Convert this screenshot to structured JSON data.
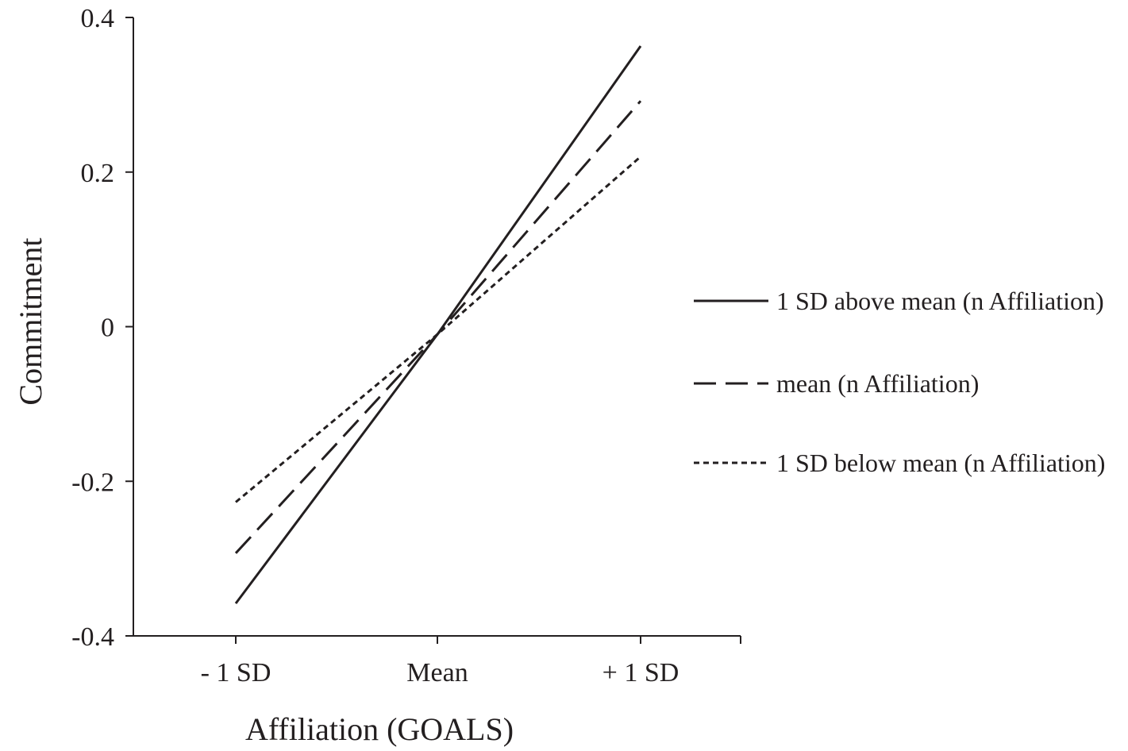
{
  "chart_data": {
    "type": "line",
    "title": "",
    "xlabel": "Affiliation (GOALS)",
    "ylabel": "Commitment",
    "categories": [
      "- 1 SD",
      "Mean",
      "+ 1 SD"
    ],
    "ylim": [
      -0.4,
      0.4
    ],
    "yticks": [
      0.4,
      0.2,
      0,
      -0.2,
      -0.4
    ],
    "ytick_labels": [
      "0.4",
      "0.2",
      "0",
      "-0.2",
      "-0.4"
    ],
    "grid": false,
    "legend_position": "right",
    "series": [
      {
        "name": "1 SD above mean (n Affiliation)",
        "style": "solid",
        "values": [
          -0.358,
          -0.01,
          0.363
        ]
      },
      {
        "name": "mean (n Affiliation)",
        "style": "dashed",
        "values": [
          -0.293,
          -0.01,
          0.292
        ]
      },
      {
        "name": "1 SD below mean (n Affiliation)",
        "style": "dotted",
        "values": [
          -0.227,
          -0.01,
          0.22
        ]
      }
    ],
    "line_color": "#231f20"
  }
}
